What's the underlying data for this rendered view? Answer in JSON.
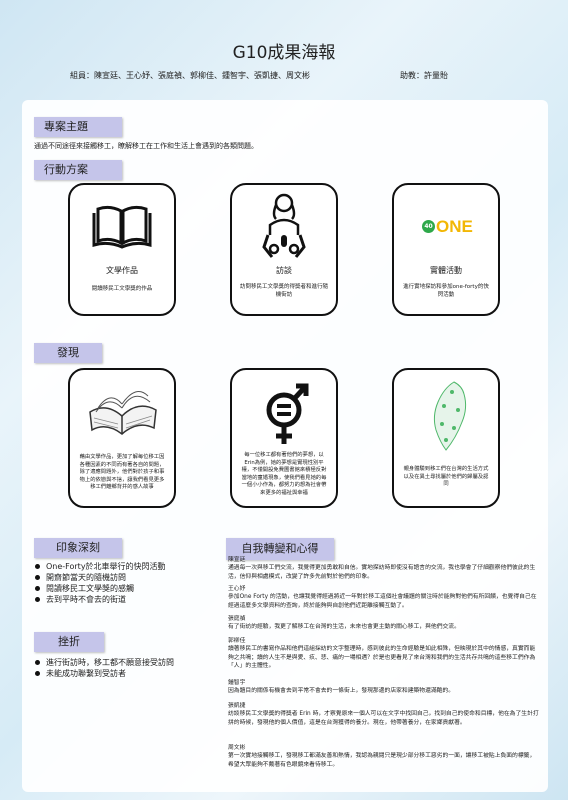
{
  "header": {
    "title": "G10成果海報",
    "members": "組員：陳宣廷、王心妤、張庭禎、郭柳佳、鍾智宇、張凱捷、周文彬",
    "advisor": "助教：許量貽"
  },
  "sections": {
    "project_theme": "專案主題",
    "project_intro": "通過不同途徑來接觸移工，瞭解移工在工作和生活上會遇到的各類問題。",
    "action_plan": "行動方案",
    "discovery": "發現",
    "impression": "印象深刻",
    "setbacks": "挫折",
    "reflection": "自我轉變和心得"
  },
  "action_cards": [
    {
      "title": "文學作品",
      "desc": "閱讀移民工文學獎的作品",
      "icon": "book-icon"
    },
    {
      "title": "訪談",
      "desc": "訪問移民工文學獎的得獎者和進行隨機街訪",
      "icon": "interview-icon"
    },
    {
      "title": "實體活動",
      "desc": "進行實地探訪和參加one-forty的快閃活動",
      "icon": "one-forty-logo",
      "logo_text": "ONE",
      "logo_num": "40"
    }
  ],
  "discovery_cards": [
    {
      "desc": "藉由文學作品，更加了解每位移工因各種因素的不同而有著各自的問題，除了適應問題外，他們對於孩子和事物上的依戀與不捨，讓我們看見更多移工們離鄉背井的感人故事",
      "icon": "open-book-icon"
    },
    {
      "desc": "每一位移工都有著他們的夢想，以Erin為例，她的夢想是實現性別平權，不僅開設免費圖書館來積極反對當地的童婚現象，使我們看見她的每一個小小作為，都努力的想為社會帶來更多的福祉與幸福",
      "icon": "gender-equality-icon"
    },
    {
      "desc": "親身體驗到移工們在台灣的生活方式以及在異土尋找屬於他們的歸屬及認同",
      "icon": "taiwan-map-icon"
    }
  ],
  "impression_items": [
    "One-Forty於北車舉行的快閃活動",
    "開齋節當天的隨機訪問",
    "閱讀移民工文學獎的感觸",
    "去到平時不會去的街道"
  ],
  "setback_items": [
    "進行街訪時，移工都不願意接受訪問",
    "未能成功聯繫到受訪者"
  ],
  "reflections": [
    {
      "name": "陳宣廷",
      "text": "通過每一次與移工們交流，我覺得更加勇敢和自信。實地探訪時即使沒有語言的交流，我也學會了仔細觀察他們彼此的生活，信仰與相處模式，改變了許多先前對於他們的印象。"
    },
    {
      "name": "王心妤",
      "text": "參加One Forty 的活動，也讓我覺得經過將近一年對於移工這個社會議題的關注時於能夠對他們有所回饋，也覺得自己在經過這麼多文學資料的查詢，終於能夠與自創他們近距離接觸互動了。"
    },
    {
      "name": "張庭禎",
      "text": "有了街訪的經驗，我更了解移工在台灣的生活，未來也會更主動的關心移工，與他們交流。"
    },
    {
      "name": "郭柳佳",
      "text": "讀著移民工的書寫作品和他們這組採訪的文字整理時，感到彼此的生命經驗是如此相殊，但映現於其中的情感，真實而能夠之共鳴；讀的人生不是與愛、疚、悲、痛的一場相遇？於是也更看見了來台灣和我們的生活共存共鳴的這些移工們作為「人」的主體性。"
    },
    {
      "name": "鍾智宇",
      "text": "因為題目的關係有機會去到平常不會去的一條街上，發現那邊的店家和建築物還滿酷的。"
    },
    {
      "name": "張凱捷",
      "text": "訪談移民工文學獎的得獎者 Erin 時，才察覺原來一個人可以在文字中找回自己，找到自己的使命和目標，他在為了生計打拼的時候，發現他的個人價值，這是在台灣獲得的養分。現在，他帶著養分，在家鄉貢獻著。"
    },
    {
      "name": "周文彬",
      "text": "第一次實地接觸移工，發現移工都滿友善和熱情，我認為親閱只是現少部分移工惡劣的一面，讓移工被貼上負面的標籤，希望大眾能夠不戴著有色眼鏡來看待移工。"
    }
  ],
  "colors": {
    "tag_bg": "#c5c5ea",
    "logo_green": "#2ea84a",
    "logo_yellow": "#f2b705",
    "map_green": "#4fb86a"
  }
}
